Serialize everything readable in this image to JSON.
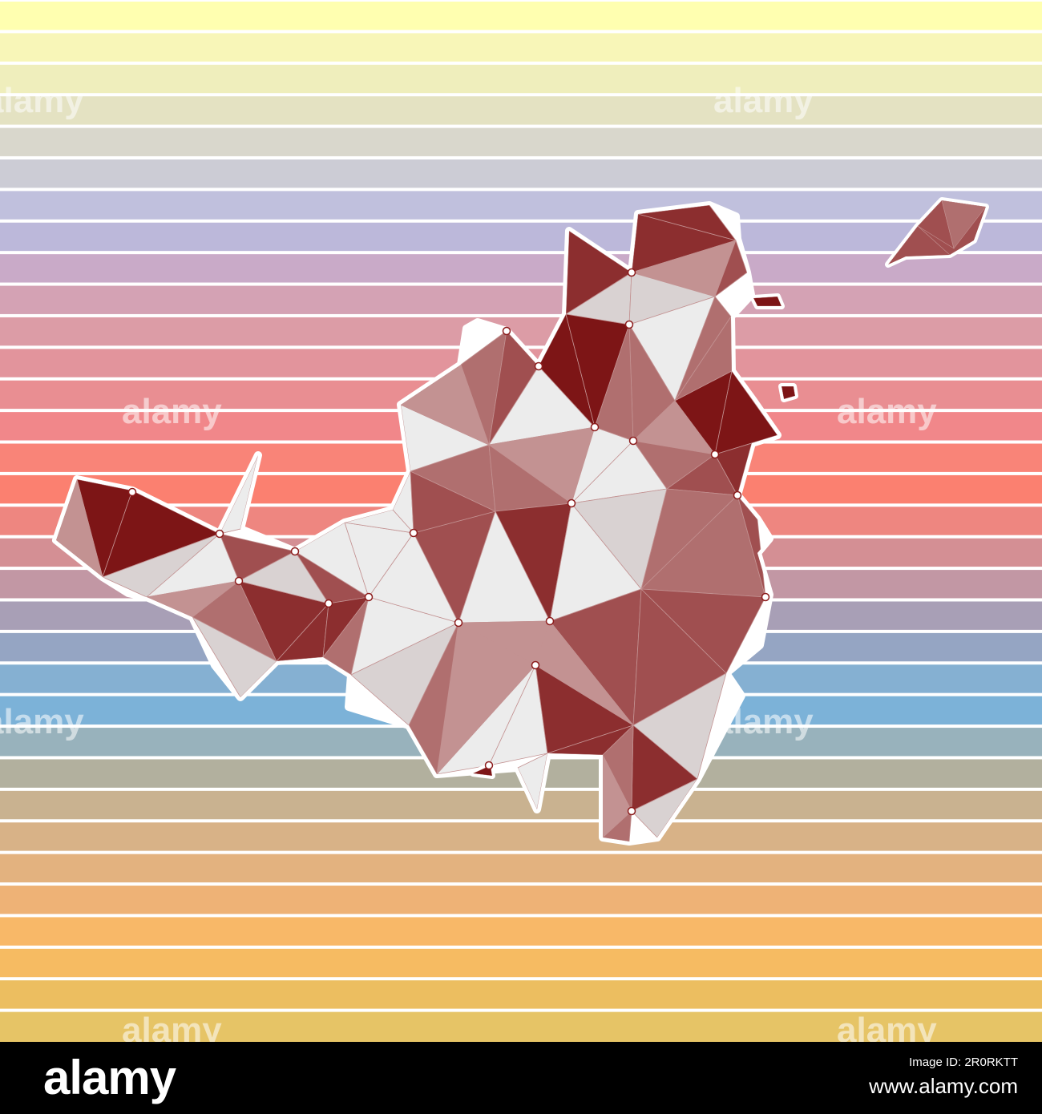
{
  "stripes": {
    "colors": [
      "#ffffb0",
      "#f8f6b8",
      "#efeebc",
      "#e4e2c2",
      "#d9d7cc",
      "#ccccd5",
      "#c0c0dd",
      "#bcb8da",
      "#c9aac8",
      "#d4a2b4",
      "#dc9ca6",
      "#e2949c",
      "#e98e92",
      "#f1878a",
      "#f98478",
      "#fb8070",
      "#ee8680",
      "#d48f94",
      "#c297a4",
      "#a89fb6",
      "#95a5c3",
      "#85b0d2",
      "#7cb2d8",
      "#98b2bc",
      "#b2b09e",
      "#c9b290",
      "#d8b287",
      "#e3b27f",
      "#eeb276",
      "#f8b868",
      "#f6bb62",
      "#ecbe60",
      "#e6c466"
    ],
    "divider_color": "#ffffff"
  },
  "map": {
    "palette": {
      "white": "#ececec",
      "light": "#d9d2d2",
      "pink": "#c39292",
      "rose": "#b06f6f",
      "mid": "#a04f50",
      "dark": "#8c2e2f",
      "deep": "#7d1516",
      "outline": "#ffffff",
      "node": "#8c1c1c"
    }
  },
  "watermark": {
    "text": "alamy",
    "color": "#ffffff"
  },
  "footer": {
    "logo": "alamy",
    "image_id_label": "Image ID: 2R0RKTT",
    "image_id_value": "www.alamy.com"
  }
}
